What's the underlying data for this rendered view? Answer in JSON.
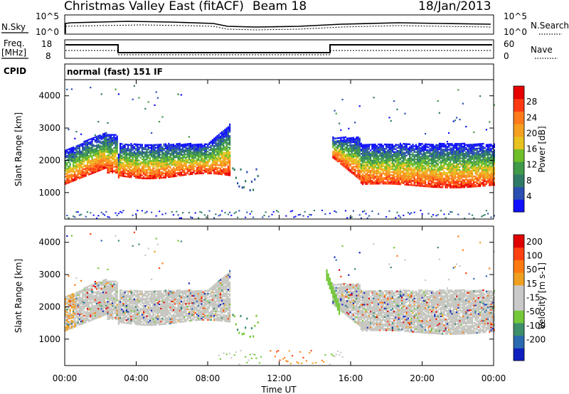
{
  "header": {
    "title": "Christmas Valley East (fitACF)",
    "beam": "Beam 18",
    "date": "18/Jan/2013"
  },
  "top_panels": {
    "noise": {
      "left_label": "N.Sky",
      "right_label": "N.Search",
      "left_ticks": [
        "10^5",
        "10^0"
      ],
      "right_ticks": [
        "10^5",
        "10^0"
      ]
    },
    "freq": {
      "left_label_1": "Freq.",
      "left_label_2": "[MHz]",
      "right_label": "Nave",
      "left_ticks": [
        "18",
        "8"
      ],
      "right_ticks": [
        "60",
        "0"
      ]
    },
    "cpid": {
      "label": "CPID",
      "text": "normal (fast) 151 IF"
    }
  },
  "chart_data": [
    {
      "type": "heatmap",
      "panel": "power",
      "ylabel": "Slant Range [km]",
      "yticks": [
        "1000",
        "2000",
        "3000",
        "4000"
      ],
      "ylim": [
        180,
        4500
      ],
      "xlim": [
        0,
        24
      ],
      "colorbar": {
        "label": "Power [dB]",
        "ticks": [
          "4",
          "8",
          "12",
          "16",
          "20",
          "24",
          "28"
        ],
        "colors": [
          "#1010ff",
          "#2a4fb0",
          "#2f7a66",
          "#3f9a4a",
          "#6fbf2a",
          "#e8c21e",
          "#f5a020",
          "#ff7a1a",
          "#ff3a12",
          "#e60000"
        ]
      }
    },
    {
      "type": "heatmap",
      "panel": "velocity",
      "ylabel": "Slant Range [km]",
      "yticks": [
        "1000",
        "2000",
        "3000",
        "4000"
      ],
      "ylim": [
        180,
        4500
      ],
      "xlim": [
        0,
        24
      ],
      "xlabel": "Time UT",
      "xticks": [
        "00:00",
        "04:00",
        "08:00",
        "12:00",
        "16:00",
        "20:00",
        "00:00"
      ],
      "colorbar": {
        "label": "Velocity [m s-1]",
        "ticks": [
          "200",
          "100",
          "50",
          "15",
          "-15",
          "-50",
          "-100",
          "-200"
        ],
        "colors": [
          "#1020c0",
          "#2a6ab0",
          "#3d8e6a",
          "#74c83a",
          "#c9c9c9",
          "#c9c9c9",
          "#f0a020",
          "#ff7a10",
          "#ff4010",
          "#e00000"
        ]
      }
    }
  ]
}
